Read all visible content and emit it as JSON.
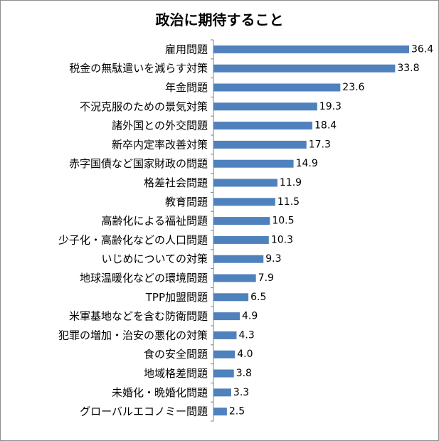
{
  "chart_data": {
    "type": "bar",
    "orientation": "horizontal",
    "title": "政治に期待すること",
    "xlabel": "",
    "ylabel": "",
    "xlim": [
      0,
      36.4
    ],
    "grid": false,
    "legend": "none",
    "bar_color": "#4f81bd",
    "categories": [
      "雇用問題",
      "税金の無駄遣いを減らす対策",
      "年金問題",
      "不況克服のための景気対策",
      "諸外国との外交問題",
      "新卒内定率改善対策",
      "赤字国債など国家財政の問題",
      "格差社会問題",
      "教育問題",
      "高齢化による福祉問題",
      "少子化・高齢化などの人口問題",
      "いじめについての対策",
      "地球温暖化などの環境問題",
      "TPP加盟問題",
      "米軍基地などを含む防衛問題",
      "犯罪の増加・治安の悪化の対策",
      "食の安全問題",
      "地域格差問題",
      "未婚化・晩婚化問題",
      "グローバルエコノミー問題"
    ],
    "values": [
      36.4,
      33.8,
      23.6,
      19.3,
      18.4,
      17.3,
      14.9,
      11.9,
      11.5,
      10.5,
      10.3,
      9.3,
      7.9,
      6.5,
      4.9,
      4.3,
      4.0,
      3.8,
      3.3,
      2.5
    ],
    "value_labels": [
      "36.4",
      "33.8",
      "23.6",
      "19.3",
      "18.4",
      "17.3",
      "14.9",
      "11.9",
      "11.5",
      "10.5",
      "10.3",
      "9.3",
      "7.9",
      "6.5",
      "4.9",
      "4.3",
      "4.0",
      "3.8",
      "3.3",
      "2.5"
    ]
  }
}
